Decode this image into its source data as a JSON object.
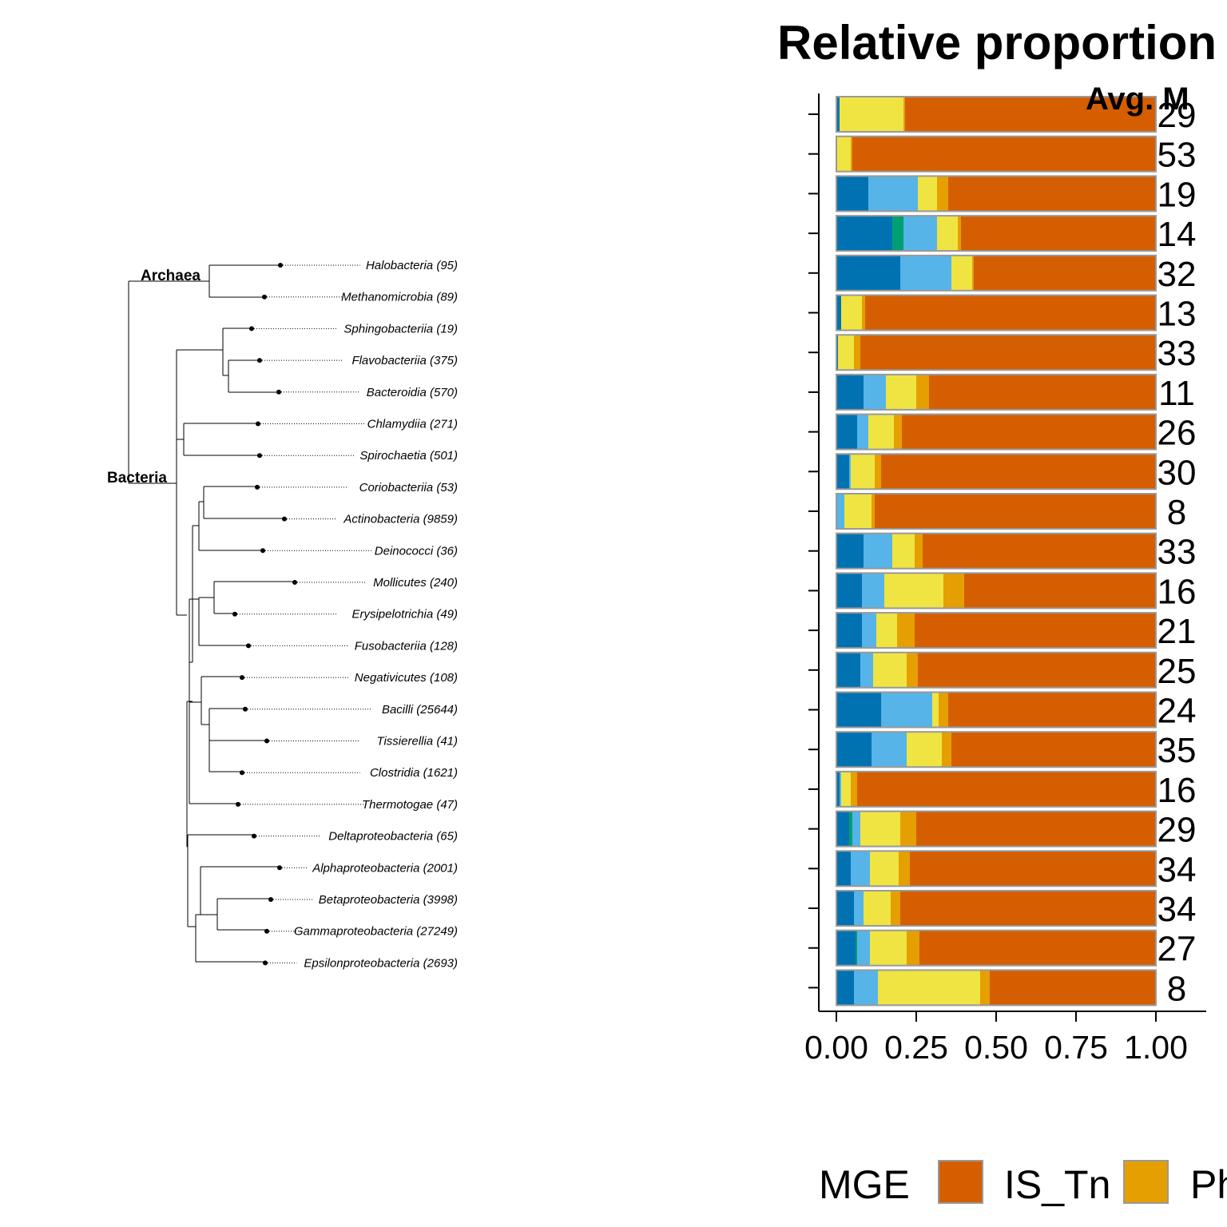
{
  "tree": {
    "clades": [
      "Archaea",
      "Bacteria"
    ],
    "taxa": [
      "Halobacteria (95)",
      "Methanomicrobia (89)",
      "Sphingobacteriia (19)",
      "Flavobacteriia (375)",
      "Bacteroidia (570)",
      "Chlamydiia (271)",
      "Spirochaetia (501)",
      "Coriobacteriia (53)",
      "Actinobacteria (9859)",
      "Deinococci (36)",
      "Mollicutes (240)",
      "Erysipelotrichia (49)",
      "Fusobacteriia (128)",
      "Negativicutes (108)",
      "Bacilli (25644)",
      "Tissierellia (41)",
      "Clostridia (1621)",
      "Thermotogae (47)",
      "Deltaproteobacteria (65)",
      "Alphaproteobacteria (2001)",
      "Betaproteobacteria (3998)",
      "Gammaproteobacteria (27249)",
      "Epsilonproteobacteria (2693)"
    ]
  },
  "chart_data": {
    "type": "bar",
    "orientation": "horizontal",
    "stacked": true,
    "title": "Relative proportion",
    "avg_header": "Avg. M",
    "xlim": [
      0,
      1
    ],
    "xticks": [
      "0.00",
      "0.25",
      "0.50",
      "0.75",
      "1.00"
    ],
    "segment_colors": [
      "#0072B2",
      "#009E73",
      "#56B4E9",
      "#F0E442",
      "#E69F00",
      "#D55E00"
    ],
    "rows": [
      {
        "avg": "29",
        "segments": [
          0.01,
          0.0,
          0.0,
          0.2,
          0.005,
          0.785
        ]
      },
      {
        "avg": "53",
        "segments": [
          0.0,
          0.0,
          0.0,
          0.045,
          0.005,
          0.95
        ]
      },
      {
        "avg": "19",
        "segments": [
          0.1,
          0.0,
          0.155,
          0.06,
          0.035,
          0.65
        ]
      },
      {
        "avg": "14",
        "segments": [
          0.175,
          0.035,
          0.105,
          0.065,
          0.01,
          0.61
        ]
      },
      {
        "avg": "32",
        "segments": [
          0.2,
          0.0,
          0.16,
          0.065,
          0.005,
          0.57
        ]
      },
      {
        "avg": "13",
        "segments": [
          0.015,
          0.0,
          0.0,
          0.065,
          0.01,
          0.91
        ]
      },
      {
        "avg": "33",
        "segments": [
          0.005,
          0.0,
          0.0,
          0.05,
          0.02,
          0.925
        ]
      },
      {
        "avg": "11",
        "segments": [
          0.085,
          0.0,
          0.07,
          0.095,
          0.04,
          0.71
        ]
      },
      {
        "avg": "26",
        "segments": [
          0.065,
          0.0,
          0.035,
          0.08,
          0.025,
          0.795
        ]
      },
      {
        "avg": "30",
        "segments": [
          0.04,
          0.0,
          0.005,
          0.075,
          0.02,
          0.86
        ]
      },
      {
        "avg": "8",
        "segments": [
          0.0,
          0.0,
          0.025,
          0.085,
          0.01,
          0.88
        ]
      },
      {
        "avg": "33",
        "segments": [
          0.085,
          0.0,
          0.09,
          0.07,
          0.025,
          0.73
        ]
      },
      {
        "avg": "16",
        "segments": [
          0.08,
          0.0,
          0.07,
          0.185,
          0.065,
          0.6
        ]
      },
      {
        "avg": "21",
        "segments": [
          0.08,
          0.0,
          0.045,
          0.065,
          0.055,
          0.755
        ]
      },
      {
        "avg": "25",
        "segments": [
          0.075,
          0.0,
          0.04,
          0.105,
          0.035,
          0.745
        ]
      },
      {
        "avg": "24",
        "segments": [
          0.14,
          0.0,
          0.16,
          0.02,
          0.03,
          0.65
        ]
      },
      {
        "avg": "35",
        "segments": [
          0.11,
          0.0,
          0.11,
          0.11,
          0.03,
          0.64
        ]
      },
      {
        "avg": "16",
        "segments": [
          0.01,
          0.0,
          0.005,
          0.03,
          0.02,
          0.935
        ]
      },
      {
        "avg": "29",
        "segments": [
          0.04,
          0.01,
          0.025,
          0.125,
          0.05,
          0.75
        ]
      },
      {
        "avg": "34",
        "segments": [
          0.045,
          0.0,
          0.06,
          0.09,
          0.035,
          0.77
        ]
      },
      {
        "avg": "34",
        "segments": [
          0.055,
          0.0,
          0.03,
          0.085,
          0.03,
          0.8
        ]
      },
      {
        "avg": "27",
        "segments": [
          0.06,
          0.005,
          0.04,
          0.115,
          0.04,
          0.74
        ]
      },
      {
        "avg": "8",
        "segments": [
          0.055,
          0.0,
          0.075,
          0.32,
          0.03,
          0.52
        ]
      }
    ],
    "legend": {
      "title": "MGE",
      "items": [
        {
          "label": "IS_Tn",
          "color": "#D55E00"
        },
        {
          "label": "Ph",
          "color": "#E69F00"
        }
      ]
    }
  }
}
